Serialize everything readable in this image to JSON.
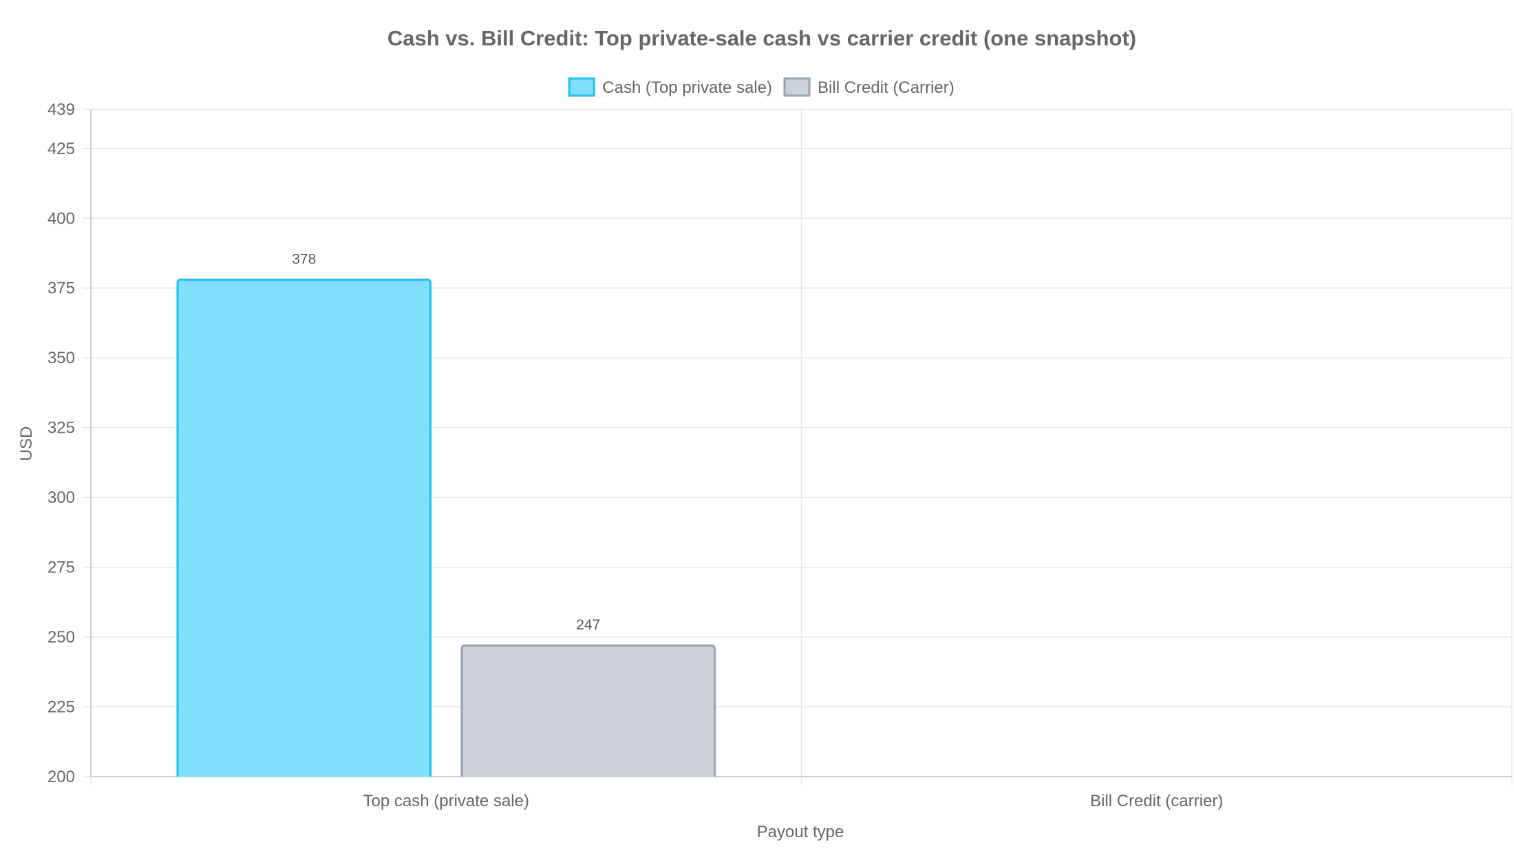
{
  "chart_data": {
    "type": "bar",
    "title": "Cash vs. Bill Credit: Top private-sale cash vs carrier credit (one snapshot)",
    "xlabel": "Payout type",
    "ylabel": "USD",
    "categories": [
      "Top cash (private sale)",
      "Bill Credit (carrier)"
    ],
    "series": [
      {
        "name": "Cash (Top private sale)",
        "values": [
          378,
          null
        ],
        "color": "#80dffc",
        "border_color": "#1ec0ee"
      },
      {
        "name": "Bill Credit (Carrier)",
        "values": [
          247,
          null
        ],
        "color": "#cdd2da",
        "border_color": "#97a3b0"
      }
    ],
    "data_labels": [
      "378",
      "247"
    ],
    "ylim": [
      200,
      439
    ],
    "y_ticks": [
      "200",
      "225",
      "250",
      "275",
      "300",
      "325",
      "350",
      "375",
      "400",
      "425",
      "439"
    ],
    "grid": true,
    "legend_position": "top-center"
  }
}
